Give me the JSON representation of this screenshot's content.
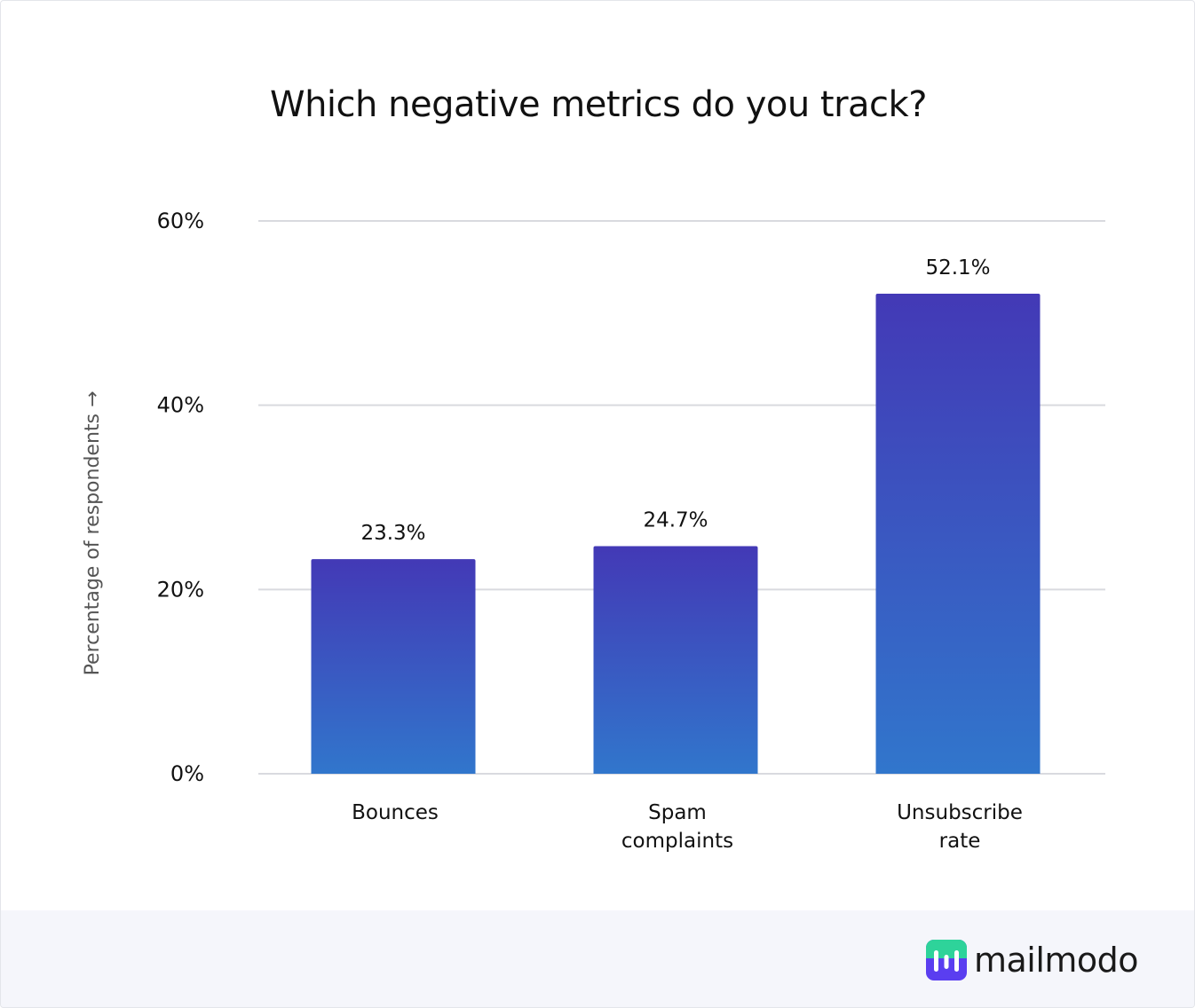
{
  "chart_data": {
    "type": "bar",
    "title": "Which negative metrics do you track?",
    "ylabel": "Percentage of respondents →",
    "xlabel": "",
    "categories": [
      [
        "Bounces"
      ],
      [
        "Spam",
        "complaints"
      ],
      [
        "Unsubscribe",
        "rate"
      ]
    ],
    "values": [
      23.3,
      24.7,
      52.1
    ],
    "data_labels": [
      "23.3%",
      "24.7%",
      "52.1%"
    ],
    "ylim": [
      0,
      60
    ],
    "yticks": [
      0,
      20,
      40,
      60
    ],
    "ytick_labels": [
      "0%",
      "20%",
      "40%",
      "60%"
    ],
    "grid": true,
    "legend": "none",
    "colors": {
      "bar_top": "#4339b6",
      "bar_bottom": "#3176cc",
      "grid": "#d9dadf",
      "text": "#111111",
      "axis_label": "#555555"
    }
  },
  "brand": {
    "name": "mailmodo",
    "icon": "mailmodo-logo-icon",
    "colors": {
      "mark_green": "#2ed39a",
      "mark_purple": "#5a3ef0"
    }
  }
}
